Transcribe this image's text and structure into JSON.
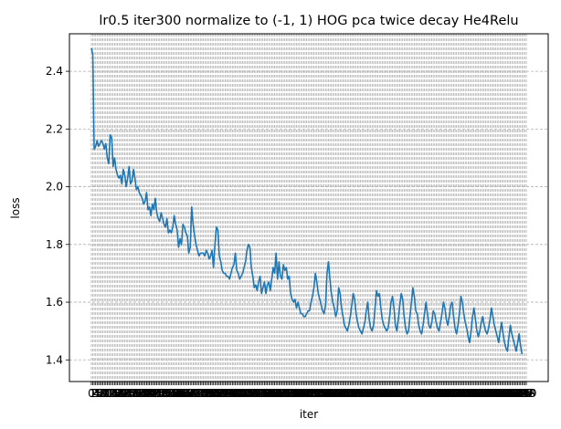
{
  "chart_data": {
    "type": "line",
    "title": "lr0.5 iter300 normalize to (-1, 1) HOG pca twice decay He4Relu",
    "xlabel": "iter",
    "ylabel": "loss",
    "xlim": [
      -15,
      314
    ],
    "ylim": [
      1.325,
      2.53
    ],
    "yticks": [
      1.4,
      1.6,
      1.8,
      2.0,
      2.2,
      2.4
    ],
    "ytick_labels": [
      "1.4",
      "1.6",
      "1.8",
      "2.0",
      "2.2",
      "2.4"
    ],
    "xticks_start": 0,
    "xticks_end": 299,
    "xticks_step": 1,
    "xtick_first_label": "0",
    "xtick_last_label": "299",
    "grid": true,
    "grid_style": "dashed",
    "line_color": "#1f77b4",
    "series": [
      {
        "x_start": 0,
        "x_step": 1,
        "values": [
          2.48,
          2.46,
          2.13,
          2.14,
          2.16,
          2.14,
          2.15,
          2.16,
          2.15,
          2.13,
          2.15,
          2.1,
          2.08,
          2.18,
          2.17,
          2.07,
          2.1,
          2.06,
          2.04,
          2.03,
          2.04,
          2.01,
          2.06,
          2.04,
          2.0,
          2.03,
          2.07,
          2.01,
          2.02,
          2.06,
          2.03,
          1.99,
          2.0,
          1.98,
          1.97,
          1.96,
          1.94,
          1.95,
          1.98,
          1.92,
          1.93,
          1.9,
          1.94,
          1.92,
          1.96,
          1.91,
          1.89,
          1.88,
          1.91,
          1.89,
          1.87,
          1.86,
          1.89,
          1.84,
          1.85,
          1.84,
          1.86,
          1.9,
          1.87,
          1.85,
          1.79,
          1.82,
          1.8,
          1.87,
          1.86,
          1.84,
          1.83,
          1.77,
          1.79,
          1.93,
          1.87,
          1.83,
          1.8,
          1.78,
          1.76,
          1.77,
          1.77,
          1.77,
          1.76,
          1.78,
          1.77,
          1.75,
          1.76,
          1.78,
          1.72,
          1.8,
          1.86,
          1.85,
          1.76,
          1.74,
          1.71,
          1.7,
          1.7,
          1.69,
          1.69,
          1.68,
          1.7,
          1.72,
          1.73,
          1.77,
          1.71,
          1.7,
          1.68,
          1.69,
          1.7,
          1.72,
          1.74,
          1.78,
          1.8,
          1.79,
          1.72,
          1.69,
          1.65,
          1.66,
          1.64,
          1.67,
          1.69,
          1.63,
          1.65,
          1.67,
          1.63,
          1.66,
          1.67,
          1.64,
          1.68,
          1.72,
          1.7,
          1.77,
          1.68,
          1.74,
          1.69,
          1.68,
          1.73,
          1.71,
          1.72,
          1.68,
          1.69,
          1.63,
          1.61,
          1.6,
          1.61,
          1.58,
          1.6,
          1.58,
          1.56,
          1.56,
          1.55,
          1.55,
          1.56,
          1.57,
          1.57,
          1.6,
          1.62,
          1.65,
          1.7,
          1.67,
          1.63,
          1.61,
          1.59,
          1.57,
          1.56,
          1.59,
          1.7,
          1.74,
          1.68,
          1.63,
          1.6,
          1.58,
          1.55,
          1.57,
          1.65,
          1.63,
          1.58,
          1.55,
          1.52,
          1.51,
          1.5,
          1.52,
          1.55,
          1.59,
          1.63,
          1.61,
          1.56,
          1.53,
          1.51,
          1.5,
          1.49,
          1.51,
          1.53,
          1.57,
          1.6,
          1.54,
          1.51,
          1.5,
          1.52,
          1.58,
          1.64,
          1.62,
          1.63,
          1.58,
          1.54,
          1.52,
          1.51,
          1.5,
          1.51,
          1.55,
          1.6,
          1.62,
          1.58,
          1.52,
          1.5,
          1.54,
          1.59,
          1.63,
          1.61,
          1.55,
          1.51,
          1.49,
          1.5,
          1.55,
          1.6,
          1.65,
          1.62,
          1.57,
          1.56,
          1.52,
          1.5,
          1.49,
          1.52,
          1.56,
          1.6,
          1.56,
          1.52,
          1.51,
          1.53,
          1.57,
          1.56,
          1.53,
          1.51,
          1.5,
          1.53,
          1.56,
          1.6,
          1.58,
          1.54,
          1.52,
          1.55,
          1.59,
          1.6,
          1.55,
          1.51,
          1.49,
          1.52,
          1.56,
          1.62,
          1.6,
          1.56,
          1.53,
          1.51,
          1.48,
          1.46,
          1.5,
          1.55,
          1.58,
          1.54,
          1.5,
          1.48,
          1.5,
          1.53,
          1.55,
          1.52,
          1.5,
          1.49,
          1.51,
          1.54,
          1.58,
          1.55,
          1.52,
          1.5,
          1.48,
          1.46,
          1.5,
          1.53,
          1.49,
          1.46,
          1.44,
          1.43,
          1.48,
          1.52,
          1.49,
          1.47,
          1.45,
          1.43,
          1.46,
          1.49,
          1.45,
          1.42
        ]
      }
    ]
  }
}
